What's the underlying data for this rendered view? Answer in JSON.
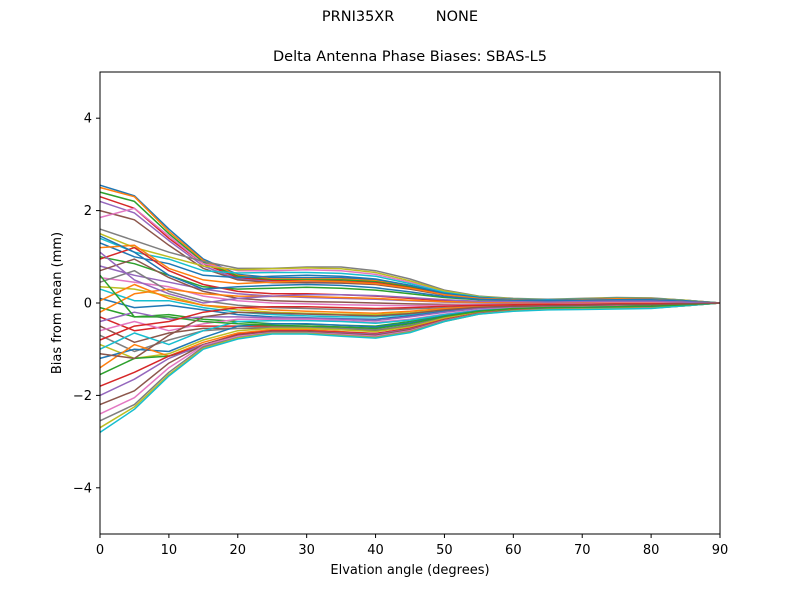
{
  "suptitle": {
    "left": "PRNI35XR",
    "right": "NONE"
  },
  "chart_data": {
    "type": "line",
    "title": "Delta Antenna Phase Biases: SBAS-L5",
    "xlabel": "Elvation angle (degrees)",
    "ylabel": "Bias from mean (mm)",
    "xlim": [
      0,
      90
    ],
    "ylim": [
      -5,
      5
    ],
    "xticks": [
      0,
      10,
      20,
      30,
      40,
      50,
      60,
      70,
      80,
      90
    ],
    "yticks": [
      -4,
      -2,
      0,
      2,
      4
    ],
    "grid": false,
    "legend": "none",
    "x": [
      0,
      5,
      10,
      15,
      20,
      25,
      30,
      35,
      40,
      45,
      50,
      55,
      60,
      65,
      70,
      75,
      80,
      85,
      90
    ],
    "colors": [
      "#1f77b4",
      "#ff7f0e",
      "#2ca02c",
      "#d62728",
      "#9467bd",
      "#8c564b",
      "#e377c2",
      "#7f7f7f",
      "#bcbd22",
      "#17becf"
    ],
    "series": [
      {
        "values": [
          2.55,
          2.32,
          1.6,
          0.95,
          0.62,
          0.55,
          0.55,
          0.55,
          0.5,
          0.38,
          0.22,
          0.12,
          0.08,
          0.06,
          0.08,
          0.1,
          0.1,
          0.06,
          0.0
        ]
      },
      {
        "values": [
          2.5,
          2.3,
          1.55,
          0.92,
          0.6,
          0.52,
          0.52,
          0.52,
          0.48,
          0.36,
          0.2,
          0.12,
          0.08,
          0.06,
          0.08,
          0.1,
          0.09,
          0.05,
          0.0
        ]
      },
      {
        "values": [
          2.4,
          2.2,
          1.5,
          0.88,
          0.58,
          0.5,
          0.5,
          0.5,
          0.46,
          0.35,
          0.2,
          0.11,
          0.07,
          0.06,
          0.07,
          0.09,
          0.09,
          0.05,
          0.0
        ]
      },
      {
        "values": [
          2.3,
          2.05,
          1.4,
          0.85,
          0.55,
          0.48,
          0.48,
          0.47,
          0.44,
          0.33,
          0.19,
          0.1,
          0.07,
          0.05,
          0.07,
          0.09,
          0.08,
          0.05,
          0.0
        ]
      },
      {
        "values": [
          2.2,
          1.95,
          1.35,
          0.8,
          0.52,
          0.46,
          0.46,
          0.45,
          0.42,
          0.31,
          0.18,
          0.1,
          0.06,
          0.05,
          0.07,
          0.08,
          0.08,
          0.04,
          0.0
        ]
      },
      {
        "values": [
          2.0,
          1.8,
          1.25,
          0.75,
          0.5,
          0.44,
          0.44,
          0.43,
          0.4,
          0.3,
          0.17,
          0.09,
          0.06,
          0.05,
          0.06,
          0.08,
          0.07,
          0.04,
          0.0
        ]
      },
      {
        "values": [
          1.85,
          2.05,
          1.45,
          0.85,
          0.7,
          0.7,
          0.72,
          0.7,
          0.62,
          0.45,
          0.25,
          0.14,
          0.09,
          0.07,
          0.09,
          0.11,
          0.1,
          0.06,
          0.0
        ]
      },
      {
        "values": [
          1.6,
          1.35,
          1.1,
          0.9,
          0.75,
          0.75,
          0.78,
          0.78,
          0.7,
          0.52,
          0.28,
          0.15,
          0.1,
          0.08,
          0.1,
          0.12,
          0.11,
          0.06,
          0.0
        ]
      },
      {
        "values": [
          1.5,
          1.2,
          1.0,
          0.8,
          0.72,
          0.74,
          0.76,
          0.74,
          0.66,
          0.48,
          0.26,
          0.14,
          0.09,
          0.07,
          0.09,
          0.11,
          0.1,
          0.06,
          0.0
        ]
      },
      {
        "values": [
          1.4,
          1.1,
          0.95,
          0.7,
          0.65,
          0.66,
          0.66,
          0.64,
          0.58,
          0.42,
          0.23,
          0.13,
          0.08,
          0.07,
          0.08,
          0.1,
          0.09,
          0.05,
          0.0
        ]
      },
      {
        "values": [
          1.3,
          1.0,
          0.85,
          0.6,
          0.55,
          0.58,
          0.6,
          0.58,
          0.52,
          0.38,
          0.21,
          0.12,
          0.08,
          0.06,
          0.08,
          0.1,
          0.09,
          0.05,
          0.0
        ]
      },
      {
        "values": [
          1.2,
          1.25,
          0.75,
          0.5,
          0.42,
          0.45,
          0.48,
          0.46,
          0.42,
          0.32,
          0.18,
          0.1,
          0.07,
          0.05,
          0.07,
          0.09,
          0.08,
          0.04,
          0.0
        ]
      },
      {
        "values": [
          1.0,
          0.85,
          0.6,
          0.35,
          0.3,
          0.32,
          0.34,
          0.32,
          0.28,
          0.2,
          0.12,
          0.07,
          0.05,
          0.04,
          0.05,
          0.06,
          0.06,
          0.03,
          0.0
        ]
      },
      {
        "values": [
          0.95,
          1.2,
          0.7,
          0.4,
          0.25,
          0.2,
          0.2,
          0.18,
          0.15,
          0.1,
          0.05,
          0.03,
          0.02,
          0.02,
          0.03,
          0.04,
          0.04,
          0.02,
          0.0
        ]
      },
      {
        "values": [
          0.8,
          0.6,
          0.45,
          0.3,
          0.2,
          0.15,
          0.12,
          0.1,
          0.08,
          0.05,
          0.02,
          0.01,
          0.01,
          0.01,
          0.02,
          0.03,
          0.03,
          0.02,
          0.0
        ]
      },
      {
        "values": [
          0.7,
          0.95,
          0.55,
          0.25,
          0.1,
          0.05,
          0.03,
          0.02,
          0.0,
          -0.02,
          -0.03,
          -0.03,
          -0.02,
          -0.01,
          0.0,
          0.01,
          0.01,
          0.0,
          0.0
        ]
      },
      {
        "values": [
          0.55,
          0.45,
          0.35,
          0.15,
          0.05,
          0.0,
          -0.02,
          -0.04,
          -0.05,
          -0.06,
          -0.05,
          -0.04,
          -0.03,
          -0.02,
          -0.01,
          0.0,
          0.0,
          0.0,
          0.0
        ]
      },
      {
        "values": [
          0.45,
          0.7,
          0.25,
          0.05,
          -0.05,
          -0.1,
          -0.12,
          -0.14,
          -0.15,
          -0.13,
          -0.1,
          -0.07,
          -0.05,
          -0.04,
          -0.03,
          -0.02,
          -0.02,
          -0.01,
          0.0
        ]
      },
      {
        "values": [
          0.35,
          0.3,
          0.15,
          -0.05,
          -0.15,
          -0.2,
          -0.22,
          -0.24,
          -0.25,
          -0.21,
          -0.14,
          -0.09,
          -0.06,
          -0.05,
          -0.04,
          -0.03,
          -0.03,
          -0.02,
          0.0
        ]
      },
      {
        "values": [
          0.3,
          0.05,
          0.05,
          -0.1,
          -0.2,
          -0.25,
          -0.28,
          -0.3,
          -0.3,
          -0.25,
          -0.17,
          -0.1,
          -0.07,
          -0.05,
          -0.04,
          -0.04,
          -0.03,
          -0.02,
          0.0
        ]
      },
      {
        "values": [
          0.1,
          -0.1,
          -0.05,
          -0.15,
          -0.25,
          -0.3,
          -0.32,
          -0.34,
          -0.35,
          -0.28,
          -0.18,
          -0.11,
          -0.08,
          -0.06,
          -0.05,
          -0.04,
          -0.04,
          -0.02,
          0.0
        ]
      },
      {
        "values": [
          0.05,
          0.4,
          0.1,
          -0.05,
          -0.1,
          -0.15,
          -0.18,
          -0.2,
          -0.22,
          -0.18,
          -0.12,
          -0.08,
          -0.06,
          -0.05,
          -0.04,
          -0.03,
          -0.03,
          -0.02,
          0.0
        ]
      },
      {
        "values": [
          -0.1,
          -0.3,
          -0.25,
          -0.35,
          -0.4,
          -0.45,
          -0.46,
          -0.48,
          -0.5,
          -0.4,
          -0.26,
          -0.16,
          -0.11,
          -0.09,
          -0.08,
          -0.07,
          -0.06,
          -0.03,
          0.0
        ]
      },
      {
        "values": [
          -0.3,
          -0.6,
          -0.5,
          -0.5,
          -0.5,
          -0.5,
          -0.5,
          -0.52,
          -0.55,
          -0.44,
          -0.28,
          -0.17,
          -0.12,
          -0.1,
          -0.09,
          -0.08,
          -0.07,
          -0.04,
          0.0
        ]
      },
      {
        "values": [
          -0.4,
          -0.2,
          -0.35,
          -0.3,
          -0.3,
          -0.32,
          -0.33,
          -0.35,
          -0.38,
          -0.3,
          -0.2,
          -0.12,
          -0.09,
          -0.07,
          -0.06,
          -0.05,
          -0.05,
          -0.03,
          0.0
        ]
      },
      {
        "values": [
          -0.5,
          -0.85,
          -0.65,
          -0.55,
          -0.55,
          -0.55,
          -0.55,
          -0.58,
          -0.6,
          -0.5,
          -0.32,
          -0.19,
          -0.14,
          -0.12,
          -0.11,
          -0.1,
          -0.09,
          -0.05,
          0.0
        ]
      },
      {
        "values": [
          -0.6,
          -0.4,
          -0.6,
          -0.45,
          -0.35,
          -0.35,
          -0.35,
          -0.38,
          -0.42,
          -0.35,
          -0.24,
          -0.15,
          -0.11,
          -0.09,
          -0.08,
          -0.07,
          -0.06,
          -0.03,
          0.0
        ]
      },
      {
        "values": [
          -0.7,
          -1.05,
          -0.8,
          -0.6,
          -0.55,
          -0.52,
          -0.52,
          -0.55,
          -0.58,
          -0.48,
          -0.31,
          -0.18,
          -0.13,
          -0.11,
          -0.1,
          -0.09,
          -0.08,
          -0.04,
          0.0
        ]
      },
      {
        "values": [
          -0.9,
          -1.2,
          -1.1,
          -0.8,
          -0.6,
          -0.55,
          -0.55,
          -0.58,
          -0.62,
          -0.52,
          -0.33,
          -0.2,
          -0.14,
          -0.12,
          -0.11,
          -0.1,
          -0.09,
          -0.05,
          0.0
        ]
      },
      {
        "values": [
          -1.0,
          -0.65,
          -0.9,
          -0.6,
          -0.4,
          -0.38,
          -0.38,
          -0.4,
          -0.44,
          -0.37,
          -0.25,
          -0.16,
          -0.12,
          -0.1,
          -0.09,
          -0.08,
          -0.07,
          -0.04,
          0.0
        ]
      },
      {
        "values": [
          -1.2,
          -1.0,
          -1.05,
          -0.75,
          -0.5,
          -0.45,
          -0.45,
          -0.48,
          -0.52,
          -0.43,
          -0.28,
          -0.17,
          -0.13,
          -0.11,
          -0.1,
          -0.09,
          -0.08,
          -0.04,
          0.0
        ]
      },
      {
        "values": [
          -1.4,
          -0.9,
          -1.15,
          -0.85,
          -0.65,
          -0.58,
          -0.58,
          -0.62,
          -0.66,
          -0.55,
          -0.35,
          -0.21,
          -0.15,
          -0.13,
          -0.12,
          -0.11,
          -0.1,
          -0.05,
          0.0
        ]
      },
      {
        "values": [
          -1.55,
          -1.2,
          -1.15,
          -0.95,
          -0.7,
          -0.6,
          -0.6,
          -0.64,
          -0.68,
          -0.56,
          -0.36,
          -0.22,
          -0.16,
          -0.13,
          -0.12,
          -0.11,
          -0.1,
          -0.05,
          0.0
        ]
      },
      {
        "values": [
          -1.8,
          -1.5,
          -1.15,
          -0.9,
          -0.68,
          -0.6,
          -0.6,
          -0.63,
          -0.66,
          -0.55,
          -0.36,
          -0.22,
          -0.16,
          -0.13,
          -0.12,
          -0.11,
          -0.1,
          -0.05,
          0.0
        ]
      },
      {
        "values": [
          -2.0,
          -1.65,
          -1.2,
          -0.9,
          -0.7,
          -0.62,
          -0.62,
          -0.65,
          -0.68,
          -0.57,
          -0.37,
          -0.22,
          -0.16,
          -0.13,
          -0.12,
          -0.11,
          -0.1,
          -0.05,
          0.0
        ]
      },
      {
        "values": [
          -2.2,
          -1.9,
          -1.3,
          -0.9,
          -0.7,
          -0.62,
          -0.62,
          -0.66,
          -0.7,
          -0.58,
          -0.37,
          -0.22,
          -0.16,
          -0.14,
          -0.13,
          -0.12,
          -0.11,
          -0.06,
          0.0
        ]
      },
      {
        "values": [
          -2.4,
          -2.05,
          -1.4,
          -0.92,
          -0.72,
          -0.64,
          -0.64,
          -0.68,
          -0.72,
          -0.6,
          -0.38,
          -0.23,
          -0.17,
          -0.14,
          -0.13,
          -0.12,
          -0.11,
          -0.06,
          0.0
        ]
      },
      {
        "values": [
          -2.55,
          -2.2,
          -1.5,
          -0.95,
          -0.75,
          -0.65,
          -0.65,
          -0.7,
          -0.74,
          -0.62,
          -0.39,
          -0.23,
          -0.17,
          -0.14,
          -0.13,
          -0.12,
          -0.11,
          -0.06,
          0.0
        ]
      },
      {
        "values": [
          -2.7,
          -2.25,
          -1.55,
          -0.98,
          -0.76,
          -0.66,
          -0.66,
          -0.71,
          -0.75,
          -0.63,
          -0.4,
          -0.24,
          -0.17,
          -0.14,
          -0.13,
          -0.12,
          -0.11,
          -0.06,
          0.0
        ]
      },
      {
        "values": [
          -2.8,
          -2.3,
          -1.58,
          -1.0,
          -0.78,
          -0.67,
          -0.67,
          -0.72,
          -0.76,
          -0.64,
          -0.4,
          -0.24,
          -0.18,
          -0.15,
          -0.14,
          -0.13,
          -0.12,
          -0.06,
          0.0
        ]
      },
      {
        "values": [
          1.45,
          1.1,
          0.6,
          0.3,
          0.35,
          0.38,
          0.4,
          0.38,
          0.33,
          0.24,
          0.14,
          0.08,
          0.06,
          0.05,
          0.06,
          0.07,
          0.07,
          0.04,
          0.0
        ]
      },
      {
        "values": [
          -0.2,
          0.2,
          0.3,
          0.2,
          0.15,
          0.14,
          0.14,
          0.12,
          0.1,
          0.06,
          0.03,
          0.02,
          0.01,
          0.01,
          0.02,
          0.03,
          0.03,
          0.02,
          0.0
        ]
      },
      {
        "values": [
          0.6,
          -0.3,
          -0.3,
          -0.4,
          -0.45,
          -0.48,
          -0.5,
          -0.52,
          -0.55,
          -0.45,
          -0.29,
          -0.18,
          -0.12,
          -0.1,
          -0.09,
          -0.08,
          -0.07,
          -0.04,
          0.0
        ]
      },
      {
        "values": [
          -0.8,
          -0.5,
          -0.4,
          -0.2,
          -0.1,
          -0.08,
          -0.08,
          -0.1,
          -0.12,
          -0.1,
          -0.07,
          -0.05,
          -0.04,
          -0.03,
          -0.03,
          -0.02,
          -0.02,
          -0.01,
          0.0
        ]
      },
      {
        "values": [
          1.1,
          0.5,
          0.2,
          0.0,
          0.1,
          0.15,
          0.18,
          0.18,
          0.16,
          0.12,
          0.07,
          0.04,
          0.03,
          0.02,
          0.03,
          0.04,
          0.04,
          0.02,
          0.0
        ]
      },
      {
        "values": [
          -1.1,
          -1.2,
          -0.7,
          -0.3,
          -0.2,
          -0.22,
          -0.24,
          -0.26,
          -0.28,
          -0.23,
          -0.15,
          -0.09,
          -0.07,
          -0.06,
          -0.05,
          -0.04,
          -0.04,
          -0.02,
          0.0
        ]
      }
    ]
  }
}
